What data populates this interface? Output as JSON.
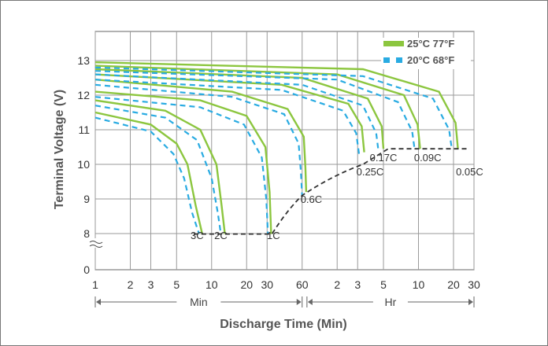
{
  "chart_data": {
    "type": "line",
    "xlabel": "Discharge Time (Min)",
    "ylabel": "Terminal Voltage (V)",
    "x_scale": "log",
    "x_unit_minutes_range": [
      1,
      1800
    ],
    "ylim": [
      0,
      13.7
    ],
    "y_axis_break": "between 0 and 8",
    "grid": true,
    "legend_position": "top-right",
    "x_ticks": [
      {
        "label": "1",
        "minutes": 1
      },
      {
        "label": "2",
        "minutes": 2
      },
      {
        "label": "3",
        "minutes": 3
      },
      {
        "label": "5",
        "minutes": 5
      },
      {
        "label": "10",
        "minutes": 10
      },
      {
        "label": "20",
        "minutes": 20
      },
      {
        "label": "30",
        "minutes": 30
      },
      {
        "label": "60",
        "minutes": 60
      },
      {
        "label": "2",
        "minutes": 120
      },
      {
        "label": "3",
        "minutes": 180
      },
      {
        "label": "5",
        "minutes": 300
      },
      {
        "label": "10",
        "minutes": 600
      },
      {
        "label": "20",
        "minutes": 1200
      },
      {
        "label": "30",
        "minutes": 1800
      }
    ],
    "y_ticks": [
      {
        "label": "0",
        "value": 0
      },
      {
        "label": "8",
        "value": 8
      },
      {
        "label": "9",
        "value": 9
      },
      {
        "label": "10",
        "value": 10
      },
      {
        "label": "11",
        "value": 11
      },
      {
        "label": "12",
        "value": 12
      },
      {
        "label": "13",
        "value": 13
      }
    ],
    "range_markers": [
      {
        "label": "Min",
        "from_minutes": 1,
        "to_minutes": 60
      },
      {
        "label": "Hr",
        "from_minutes": 66,
        "to_minutes": 1800
      }
    ],
    "legend": [
      {
        "label": "25°C 77°F",
        "color": "#8cc63f",
        "style": "solid"
      },
      {
        "label": "20°C 68°F",
        "color": "#29abe2",
        "style": "dashed"
      }
    ],
    "cutoff_line": {
      "style": "dashed",
      "color": "#333333",
      "points": [
        {
          "minutes": 7,
          "v": 7.9
        },
        {
          "minutes": 33,
          "v": 7.9
        },
        {
          "minutes": 60,
          "v": 9.1
        },
        {
          "minutes": 200,
          "v": 10.0
        },
        {
          "minutes": 330,
          "v": 10.45
        },
        {
          "minutes": 1650,
          "v": 10.45
        }
      ]
    },
    "series": [
      {
        "name": "3C",
        "label_at": {
          "minutes": 7.5,
          "v": 7.65
        },
        "curve_25": [
          {
            "minutes": 1,
            "v": 11.5
          },
          {
            "minutes": 3,
            "v": 11.15
          },
          {
            "minutes": 5,
            "v": 10.6
          },
          {
            "minutes": 6.2,
            "v": 10.0
          },
          {
            "minutes": 7.3,
            "v": 8.8
          },
          {
            "minutes": 8.3,
            "v": 7.95
          }
        ],
        "curve_20": [
          {
            "minutes": 1,
            "v": 11.35
          },
          {
            "minutes": 3,
            "v": 10.95
          },
          {
            "minutes": 4.7,
            "v": 10.3
          },
          {
            "minutes": 5.8,
            "v": 9.6
          },
          {
            "minutes": 6.8,
            "v": 8.6
          },
          {
            "minutes": 7.8,
            "v": 7.95
          }
        ]
      },
      {
        "name": "2C",
        "label_at": {
          "minutes": 12,
          "v": 7.65
        },
        "curve_25": [
          {
            "minutes": 1,
            "v": 11.85
          },
          {
            "minutes": 4,
            "v": 11.55
          },
          {
            "minutes": 8,
            "v": 11.0
          },
          {
            "minutes": 11,
            "v": 10.0
          },
          {
            "minutes": 12.2,
            "v": 8.8
          },
          {
            "minutes": 13,
            "v": 7.95
          }
        ],
        "curve_20": [
          {
            "minutes": 1,
            "v": 11.7
          },
          {
            "minutes": 4,
            "v": 11.35
          },
          {
            "minutes": 7.5,
            "v": 10.7
          },
          {
            "minutes": 10,
            "v": 9.6
          },
          {
            "minutes": 11.3,
            "v": 8.6
          },
          {
            "minutes": 12,
            "v": 7.95
          }
        ]
      },
      {
        "name": "1C",
        "label_at": {
          "minutes": 34,
          "v": 7.65
        },
        "curve_25": [
          {
            "minutes": 1,
            "v": 12.1
          },
          {
            "minutes": 8,
            "v": 11.85
          },
          {
            "minutes": 20,
            "v": 11.4
          },
          {
            "minutes": 29,
            "v": 10.5
          },
          {
            "minutes": 31.5,
            "v": 9.2
          },
          {
            "minutes": 32.5,
            "v": 7.9
          }
        ],
        "curve_20": [
          {
            "minutes": 1,
            "v": 11.95
          },
          {
            "minutes": 8,
            "v": 11.65
          },
          {
            "minutes": 19,
            "v": 11.15
          },
          {
            "minutes": 27,
            "v": 10.2
          },
          {
            "minutes": 29.5,
            "v": 9.0
          },
          {
            "minutes": 30.5,
            "v": 7.9
          }
        ]
      },
      {
        "name": "0.6C",
        "label_at": {
          "minutes": 72,
          "v": 9.0
        },
        "curve_25": [
          {
            "minutes": 1,
            "v": 12.45
          },
          {
            "minutes": 15,
            "v": 12.1
          },
          {
            "minutes": 45,
            "v": 11.6
          },
          {
            "minutes": 62,
            "v": 10.8
          },
          {
            "minutes": 64,
            "v": 9.9
          },
          {
            "minutes": 65,
            "v": 9.2
          }
        ],
        "curve_20": [
          {
            "minutes": 1,
            "v": 12.3
          },
          {
            "minutes": 15,
            "v": 11.95
          },
          {
            "minutes": 42,
            "v": 11.45
          },
          {
            "minutes": 56,
            "v": 10.6
          },
          {
            "minutes": 58.5,
            "v": 9.8
          },
          {
            "minutes": 60,
            "v": 9.1
          }
        ]
      },
      {
        "name": "0.25C",
        "label_at": {
          "minutes": 230,
          "v": 9.8
        },
        "curve_25": [
          {
            "minutes": 1,
            "v": 12.6
          },
          {
            "minutes": 40,
            "v": 12.3
          },
          {
            "minutes": 150,
            "v": 11.75
          },
          {
            "minutes": 195,
            "v": 11.1
          },
          {
            "minutes": 205,
            "v": 10.35
          }
        ],
        "curve_20": [
          {
            "minutes": 1,
            "v": 12.45
          },
          {
            "minutes": 40,
            "v": 12.15
          },
          {
            "minutes": 135,
            "v": 11.55
          },
          {
            "minutes": 175,
            "v": 10.9
          },
          {
            "minutes": 185,
            "v": 10.3
          }
        ]
      },
      {
        "name": "0.17C",
        "label_at": {
          "minutes": 300,
          "v": 10.2
        },
        "curve_25": [
          {
            "minutes": 1,
            "v": 12.75
          },
          {
            "minutes": 60,
            "v": 12.5
          },
          {
            "minutes": 220,
            "v": 11.9
          },
          {
            "minutes": 290,
            "v": 11.1
          },
          {
            "minutes": 300,
            "v": 10.45
          }
        ],
        "curve_20": [
          {
            "minutes": 1,
            "v": 12.6
          },
          {
            "minutes": 60,
            "v": 12.3
          },
          {
            "minutes": 200,
            "v": 11.7
          },
          {
            "minutes": 260,
            "v": 10.9
          },
          {
            "minutes": 270,
            "v": 10.45
          }
        ]
      },
      {
        "name": "0.09C",
        "label_at": {
          "minutes": 720,
          "v": 10.2
        },
        "curve_25": [
          {
            "minutes": 1,
            "v": 12.85
          },
          {
            "minutes": 120,
            "v": 12.6
          },
          {
            "minutes": 450,
            "v": 12.0
          },
          {
            "minutes": 590,
            "v": 11.15
          },
          {
            "minutes": 620,
            "v": 10.45
          }
        ],
        "curve_20": [
          {
            "minutes": 1,
            "v": 12.7
          },
          {
            "minutes": 120,
            "v": 12.45
          },
          {
            "minutes": 400,
            "v": 11.8
          },
          {
            "minutes": 530,
            "v": 10.95
          },
          {
            "minutes": 555,
            "v": 10.45
          }
        ]
      },
      {
        "name": "0.05C",
        "label_at": {
          "minutes": 1650,
          "v": 9.8
        },
        "curve_25": [
          {
            "minutes": 1,
            "v": 12.95
          },
          {
            "minutes": 200,
            "v": 12.75
          },
          {
            "minutes": 900,
            "v": 12.1
          },
          {
            "minutes": 1250,
            "v": 11.2
          },
          {
            "minutes": 1310,
            "v": 10.45
          }
        ],
        "curve_20": [
          {
            "minutes": 1,
            "v": 12.8
          },
          {
            "minutes": 200,
            "v": 12.55
          },
          {
            "minutes": 800,
            "v": 11.9
          },
          {
            "minutes": 1100,
            "v": 11.0
          },
          {
            "minutes": 1160,
            "v": 10.45
          }
        ]
      }
    ]
  }
}
